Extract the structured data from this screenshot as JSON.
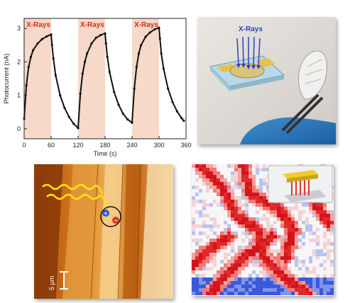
{
  "chart_data": {
    "type": "line",
    "xlabel": "Time (s)",
    "ylabel": "Photocurrent (nA)",
    "xlim": [
      0,
      360
    ],
    "ylim": [
      -0.3,
      3.3
    ],
    "xticks": [
      0,
      60,
      120,
      180,
      240,
      300,
      360
    ],
    "yticks": [
      0,
      1,
      2,
      3
    ],
    "shaded_regions": [
      {
        "label": "X-Rays",
        "x": [
          0,
          60
        ]
      },
      {
        "label": "X-Rays",
        "x": [
          120,
          180
        ]
      },
      {
        "label": "X-Rays",
        "x": [
          240,
          300
        ]
      }
    ],
    "series": [
      {
        "x": [
          0,
          5,
          10,
          15,
          20,
          30,
          40,
          50,
          60,
          62,
          65,
          70,
          80,
          90,
          100,
          110,
          120,
          125,
          130,
          135,
          140,
          150,
          160,
          170,
          180,
          182,
          185,
          190,
          200,
          210,
          220,
          230,
          240,
          245,
          250,
          255,
          260,
          270,
          280,
          290,
          300,
          302,
          305,
          310,
          320,
          330,
          340,
          350,
          355
        ],
        "values": [
          0.3,
          1.3,
          1.85,
          2.15,
          2.35,
          2.55,
          2.68,
          2.76,
          2.82,
          2.5,
          2.1,
          1.6,
          1.0,
          0.62,
          0.35,
          0.15,
          0.02,
          1.05,
          1.65,
          2.0,
          2.25,
          2.55,
          2.72,
          2.8,
          2.85,
          2.55,
          2.15,
          1.7,
          1.1,
          0.72,
          0.45,
          0.28,
          0.18,
          1.2,
          1.85,
          2.25,
          2.5,
          2.75,
          2.88,
          2.97,
          3.02,
          2.7,
          2.25,
          1.8,
          1.2,
          0.8,
          0.52,
          0.32,
          0.24
        ]
      }
    ]
  },
  "photo": {
    "label": "X-Rays"
  },
  "afm": {
    "scale_label": "5 µm"
  },
  "colors": {
    "shade": "#f6d9c8",
    "xray_label": "#d62a1e",
    "curve": "#111111"
  }
}
